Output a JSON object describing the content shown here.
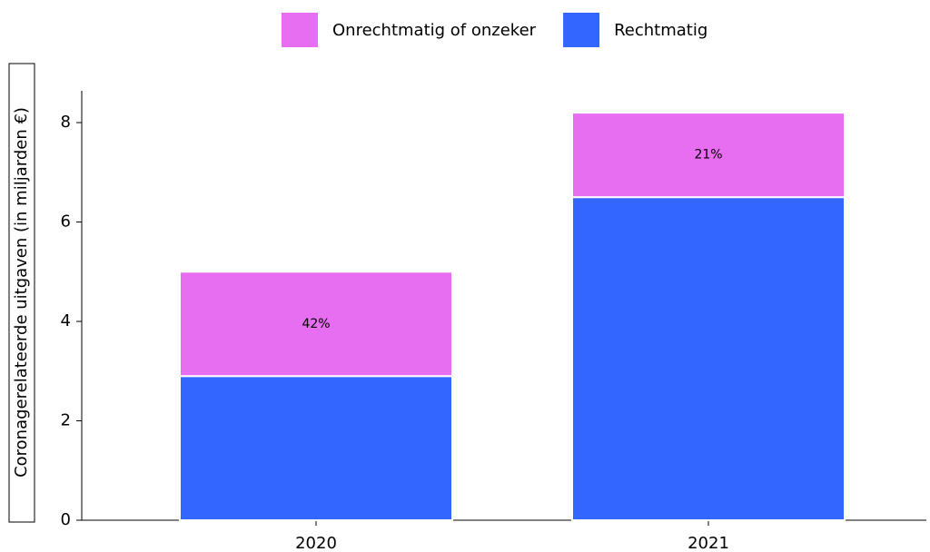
{
  "chart_data": {
    "type": "stacked_bar",
    "categories": [
      "2020",
      "2021"
    ],
    "series": [
      {
        "name": "Onrechtmatig of onzeker",
        "color": "#e76ef0",
        "values": [
          2.1,
          1.7
        ]
      },
      {
        "name": "Rechtmatig",
        "color": "#3366ff",
        "values": [
          2.9,
          6.5
        ]
      }
    ],
    "annotations": [
      "42%",
      "21%"
    ],
    "y_label": "Coronagerelateerde uitgaven  (in  miljarden €)",
    "ylim": [
      0,
      8.64
    ],
    "yticks": [
      0,
      2,
      4,
      6,
      8
    ],
    "grid": false,
    "legend": "top"
  }
}
